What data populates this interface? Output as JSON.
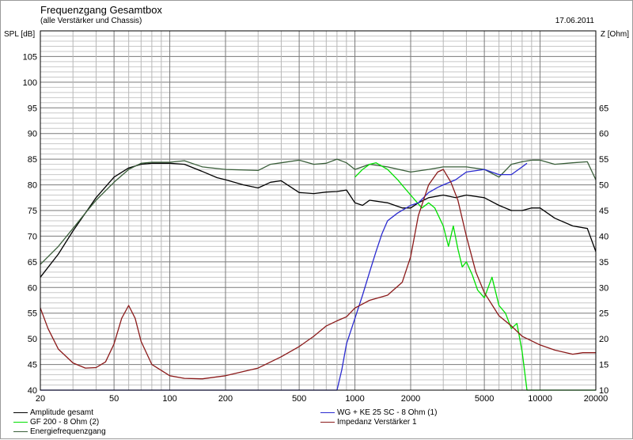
{
  "header": {
    "title": "Frequenzgang Gesamtbox",
    "subtitle": "(alle Verstärker und Chassis)",
    "date": "17.06.2011",
    "ylabel_left": "SPL [dB]",
    "ylabel_right": "Z [Ohm]"
  },
  "colors": {
    "background": "#ffffff",
    "grid": "#909090",
    "amplitude": "#000000",
    "gf200": "#00e000",
    "energy": "#3a5f3a",
    "wg": "#2a2ad0",
    "impedance": "#8b1a1a"
  },
  "chart_data": {
    "type": "line",
    "x_scale": "log",
    "xlim": [
      20,
      20000
    ],
    "xticks": [
      20,
      50,
      100,
      200,
      500,
      1000,
      2000,
      5000,
      10000,
      20000
    ],
    "ylim_left": [
      40,
      110
    ],
    "yticks_left": [
      40,
      45,
      50,
      55,
      60,
      65,
      70,
      75,
      80,
      85,
      90,
      95,
      100,
      105
    ],
    "ylim_right": [
      10,
      70
    ],
    "yticks_right": [
      10,
      15,
      20,
      25,
      30,
      35,
      40,
      45,
      50,
      55,
      60,
      65
    ],
    "grid": true,
    "legend_position": "bottom",
    "series": [
      {
        "name": "Amplitude gesamt",
        "axis": "left",
        "color": "#000000",
        "points": [
          [
            20,
            62
          ],
          [
            25,
            66.5
          ],
          [
            30,
            71
          ],
          [
            35,
            74.5
          ],
          [
            40,
            77.5
          ],
          [
            50,
            81.5
          ],
          [
            60,
            83.3
          ],
          [
            70,
            84
          ],
          [
            80,
            84.2
          ],
          [
            100,
            84.2
          ],
          [
            120,
            84
          ],
          [
            150,
            82.6
          ],
          [
            180,
            81.4
          ],
          [
            200,
            81
          ],
          [
            250,
            80
          ],
          [
            300,
            79.4
          ],
          [
            350,
            80.5
          ],
          [
            400,
            80.8
          ],
          [
            500,
            78.5
          ],
          [
            600,
            78.3
          ],
          [
            700,
            78.6
          ],
          [
            800,
            78.7
          ],
          [
            900,
            79
          ],
          [
            1000,
            76.5
          ],
          [
            1100,
            76
          ],
          [
            1200,
            77
          ],
          [
            1500,
            76.5
          ],
          [
            1800,
            75.5
          ],
          [
            2000,
            75.5
          ],
          [
            2200,
            76.5
          ],
          [
            2500,
            77.5
          ],
          [
            3000,
            78
          ],
          [
            3500,
            77.5
          ],
          [
            4000,
            78
          ],
          [
            5000,
            77.5
          ],
          [
            6000,
            76
          ],
          [
            7000,
            75
          ],
          [
            8000,
            75
          ],
          [
            9000,
            75.5
          ],
          [
            10000,
            75.5
          ],
          [
            12000,
            73.5
          ],
          [
            15000,
            72
          ],
          [
            18000,
            71.5
          ],
          [
            20000,
            67
          ]
        ]
      },
      {
        "name": "Energiefrequenzgang",
        "axis": "left",
        "color": "#3a5f3a",
        "points": [
          [
            20,
            64.5
          ],
          [
            25,
            68
          ],
          [
            30,
            71.5
          ],
          [
            35,
            74.5
          ],
          [
            40,
            77
          ],
          [
            50,
            80.5
          ],
          [
            60,
            83
          ],
          [
            70,
            84.2
          ],
          [
            80,
            84.4
          ],
          [
            100,
            84.4
          ],
          [
            120,
            84.7
          ],
          [
            150,
            83.5
          ],
          [
            200,
            83
          ],
          [
            300,
            82.8
          ],
          [
            350,
            84
          ],
          [
            400,
            84.3
          ],
          [
            500,
            84.8
          ],
          [
            600,
            84
          ],
          [
            700,
            84.2
          ],
          [
            800,
            85
          ],
          [
            900,
            84.3
          ],
          [
            1000,
            83
          ],
          [
            1200,
            84
          ],
          [
            1500,
            83.5
          ],
          [
            2000,
            82.5
          ],
          [
            2500,
            83
          ],
          [
            3000,
            83.5
          ],
          [
            4000,
            83.5
          ],
          [
            5000,
            83
          ],
          [
            6000,
            81.5
          ],
          [
            7000,
            84
          ],
          [
            8000,
            84.5
          ],
          [
            9000,
            84.8
          ],
          [
            10000,
            84.8
          ],
          [
            12000,
            84
          ],
          [
            15000,
            84.3
          ],
          [
            18000,
            84.5
          ],
          [
            20000,
            81
          ]
        ]
      },
      {
        "name": "GF 200 - 8 Ohm (2)",
        "axis": "left",
        "color": "#00e000",
        "points": [
          [
            1000,
            81.5
          ],
          [
            1100,
            83
          ],
          [
            1200,
            84
          ],
          [
            1300,
            84.3
          ],
          [
            1500,
            83
          ],
          [
            1700,
            81
          ],
          [
            2000,
            78
          ],
          [
            2300,
            75.5
          ],
          [
            2500,
            76.5
          ],
          [
            2700,
            75.5
          ],
          [
            3000,
            72
          ],
          [
            3200,
            68
          ],
          [
            3400,
            72
          ],
          [
            3600,
            67.5
          ],
          [
            3800,
            64
          ],
          [
            4000,
            65
          ],
          [
            4300,
            62.5
          ],
          [
            4600,
            59.5
          ],
          [
            5000,
            58
          ],
          [
            5500,
            62
          ],
          [
            6000,
            56.5
          ],
          [
            6500,
            55
          ],
          [
            7000,
            52
          ],
          [
            7500,
            53
          ],
          [
            8000,
            47.5
          ],
          [
            8500,
            40
          ],
          [
            9000,
            40
          ],
          [
            20000,
            40
          ]
        ]
      },
      {
        "name": "WG + KE 25 SC - 8 Ohm (1)",
        "axis": "left",
        "color": "#2a2ad0",
        "points": [
          [
            20,
            40
          ],
          [
            800,
            40
          ],
          [
            850,
            44
          ],
          [
            900,
            49
          ],
          [
            1000,
            54
          ],
          [
            1100,
            58.5
          ],
          [
            1200,
            63
          ],
          [
            1300,
            67
          ],
          [
            1400,
            70.5
          ],
          [
            1500,
            73
          ],
          [
            1700,
            74.5
          ],
          [
            2000,
            76
          ],
          [
            2200,
            76.5
          ],
          [
            2500,
            78.5
          ],
          [
            2800,
            79.5
          ],
          [
            3000,
            80
          ],
          [
            3500,
            81
          ],
          [
            4000,
            82.5
          ],
          [
            5000,
            83
          ],
          [
            6000,
            82
          ],
          [
            7000,
            82
          ],
          [
            8000,
            83.5
          ],
          [
            8500,
            84.2
          ]
        ]
      },
      {
        "name": "Impedanz Verstärker 1",
        "axis": "right",
        "color": "#8b1a1a",
        "points": [
          [
            20,
            26
          ],
          [
            22,
            22
          ],
          [
            25,
            18
          ],
          [
            30,
            15.3
          ],
          [
            35,
            14.3
          ],
          [
            40,
            14.4
          ],
          [
            45,
            15.5
          ],
          [
            50,
            19
          ],
          [
            55,
            24
          ],
          [
            60,
            26.5
          ],
          [
            65,
            24
          ],
          [
            70,
            19.5
          ],
          [
            80,
            15
          ],
          [
            100,
            12.8
          ],
          [
            120,
            12.3
          ],
          [
            150,
            12.2
          ],
          [
            200,
            12.8
          ],
          [
            300,
            14.3
          ],
          [
            400,
            16.5
          ],
          [
            500,
            18.5
          ],
          [
            600,
            20.5
          ],
          [
            700,
            22.5
          ],
          [
            800,
            23.5
          ],
          [
            900,
            24.3
          ],
          [
            1000,
            26
          ],
          [
            1200,
            27.5
          ],
          [
            1500,
            28.5
          ],
          [
            1800,
            31
          ],
          [
            2000,
            36
          ],
          [
            2200,
            44
          ],
          [
            2500,
            50
          ],
          [
            2800,
            52.5
          ],
          [
            3000,
            53
          ],
          [
            3300,
            50.5
          ],
          [
            3600,
            47
          ],
          [
            4000,
            40
          ],
          [
            4500,
            33
          ],
          [
            5000,
            29
          ],
          [
            6000,
            24.5
          ],
          [
            7000,
            22.5
          ],
          [
            8000,
            20.5
          ],
          [
            10000,
            18.8
          ],
          [
            12000,
            17.8
          ],
          [
            15000,
            17
          ],
          [
            17000,
            17.3
          ],
          [
            20000,
            17.3
          ]
        ]
      }
    ]
  },
  "legend": [
    {
      "label": "Amplitude gesamt",
      "color": "#000000"
    },
    {
      "label": "GF 200 - 8 Ohm (2)",
      "color": "#00e000"
    },
    {
      "label": "Energiefrequenzgang",
      "color": "#3a5f3a"
    },
    {
      "label": "WG + KE 25 SC - 8 Ohm (1)",
      "color": "#2a2ad0"
    },
    {
      "label": "Impedanz Verstärker 1",
      "color": "#8b1a1a"
    }
  ]
}
